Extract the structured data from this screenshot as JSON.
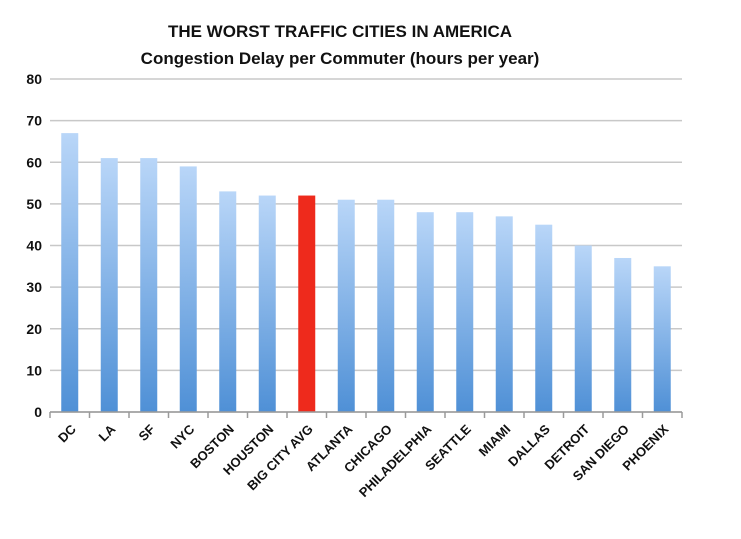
{
  "chart_data": {
    "type": "bar",
    "title": "THE WORST TRAFFIC CITIES IN AMERICA",
    "subtitle": "Congestion Delay per Commuter (hours per year)",
    "xlabel": "",
    "ylabel": "",
    "ylim": [
      0,
      80
    ],
    "yticks": [
      0,
      10,
      20,
      30,
      40,
      50,
      60,
      70,
      80
    ],
    "grid": true,
    "categories": [
      "DC",
      "LA",
      "SF",
      "NYC",
      "BOSTON",
      "HOUSTON",
      "BIG CITY AVG",
      "ATLANTA",
      "CHICAGO",
      "PHILADELPHIA",
      "SEATTLE",
      "MIAMI",
      "DALLAS",
      "DETROIT",
      "SAN DIEGO",
      "PHOENIX"
    ],
    "values": [
      67,
      61,
      61,
      59,
      53,
      52,
      52,
      51,
      51,
      48,
      48,
      47,
      45,
      40,
      37,
      35
    ],
    "highlight_category": "BIG CITY AVG",
    "colors": {
      "bar_top": "#b9d6f8",
      "bar_bottom": "#4f90d6",
      "highlight": "#ee2a1c",
      "grid": "#c8c8c8",
      "axis": "#9a9a9a"
    }
  }
}
